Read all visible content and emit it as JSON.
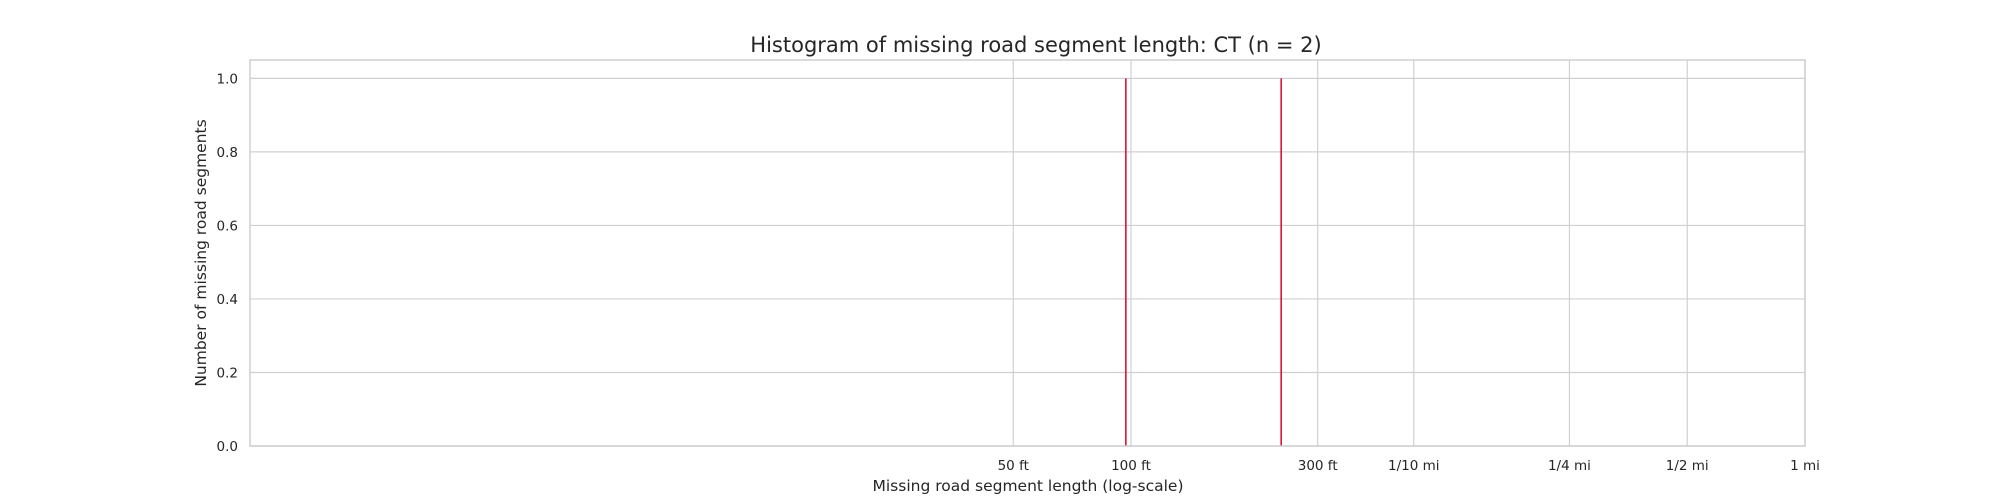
{
  "chart_data": {
    "type": "bar",
    "title": "Histogram of missing road segment length: CT (n = 2)",
    "xlabel": "Missing road segment  length (log-scale)",
    "ylabel": "Number of missing road segments",
    "x_scale": "log",
    "x_unit": "ft",
    "xlim": [
      0.56,
      5280
    ],
    "ylim": [
      0,
      1.05
    ],
    "grid": true,
    "bar_color": "#dc143c",
    "x_ticks": [
      {
        "value": 50,
        "label": "50 ft"
      },
      {
        "value": 100,
        "label": "100 ft"
      },
      {
        "value": 300,
        "label": "300 ft"
      },
      {
        "value": 528,
        "label": "1/10 mi"
      },
      {
        "value": 1320,
        "label": "1/4 mi"
      },
      {
        "value": 2640,
        "label": "1/2 mi"
      },
      {
        "value": 5280,
        "label": "1 mi"
      }
    ],
    "y_ticks": [
      {
        "value": 0.0,
        "label": "0.0"
      },
      {
        "value": 0.2,
        "label": "0.2"
      },
      {
        "value": 0.4,
        "label": "0.4"
      },
      {
        "value": 0.6,
        "label": "0.6"
      },
      {
        "value": 0.8,
        "label": "0.8"
      },
      {
        "value": 1.0,
        "label": "1.0"
      }
    ],
    "bars": [
      {
        "x": 97,
        "count": 1
      },
      {
        "x": 242,
        "count": 1
      }
    ]
  }
}
